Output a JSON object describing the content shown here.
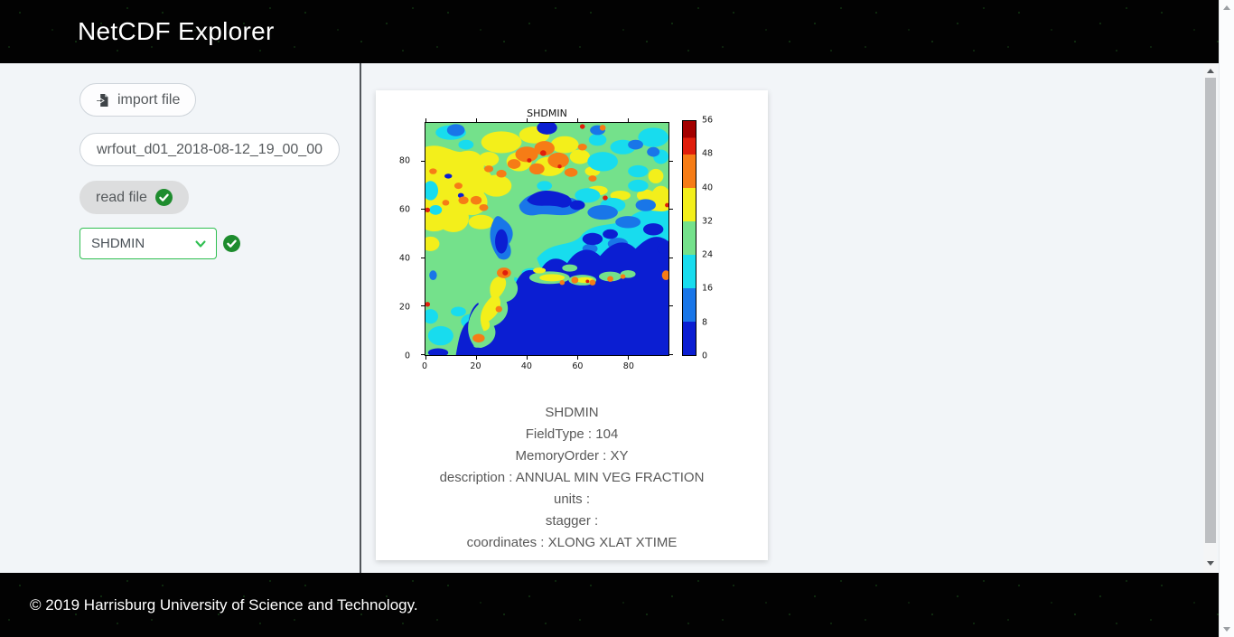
{
  "header": {
    "title": "NetCDF Explorer"
  },
  "sidebar": {
    "import_button": {
      "label": "import file",
      "icon": "file-import-icon"
    },
    "filename": "wrfout_d01_2018-08-12_19_00_00",
    "read_button": {
      "label": "read file",
      "status_icon": "check-circle-icon"
    },
    "variable_select": {
      "value": "SHDMIN",
      "chevron_icon": "chevron-down-icon",
      "status_icon": "check-circle-icon"
    }
  },
  "card": {
    "meta_lines": [
      "SHDMIN",
      "FieldType : 104",
      "MemoryOrder : XY",
      "description : ANNUAL MIN VEG FRACTION",
      "units :",
      "stagger :",
      "coordinates : XLONG XLAT XTIME"
    ]
  },
  "footer": {
    "copyright": "© 2019 Harrisburg University of Science and Technology."
  },
  "colors": {
    "header_bg": "#020202",
    "star_green": "#2f9b2f",
    "page_bg": "#f2f5f8",
    "card_bg": "#ffffff",
    "divider": "#53575c",
    "accent_green": "#2fbf51",
    "check_green": "#1e8c2e",
    "button_text": "#55595c"
  },
  "chart_data": {
    "type": "heatmap",
    "title": "SHDMIN",
    "xlabel": "",
    "ylabel": "",
    "x_range": [
      0,
      96
    ],
    "y_range": [
      0,
      96
    ],
    "x_ticks": [
      0,
      20,
      40,
      60,
      80
    ],
    "y_ticks": [
      0,
      20,
      40,
      60,
      80
    ],
    "grid": false,
    "legend_position": "right-colorbar",
    "colorbar": {
      "range": [
        0,
        56
      ],
      "ticks": [
        0,
        8,
        16,
        24,
        32,
        40,
        48,
        56
      ],
      "band_edges": [
        0,
        8,
        16,
        24,
        32,
        40,
        48,
        52,
        56
      ],
      "band_colors": [
        "#0b1ed2",
        "#1976e8",
        "#18dcee",
        "#74e18b",
        "#f3ef1b",
        "#f67c16",
        "#e01e0c",
        "#a30000"
      ]
    },
    "palette": {
      "dark_blue": "#0b1ed2",
      "blue": "#1976e8",
      "cyan": "#18dcee",
      "green": "#74e18b",
      "yellow": "#f3ef1b",
      "orange": "#f67c16",
      "red": "#e01e0c",
      "dark_red": "#a30000"
    },
    "regions_summary": "Filled contour field 0-56: large low-value (0-8) dark-blue area over bottom and lower-right; cyan/blue belt (8-24) across middle-right; green background (24-32); yellow band (32-40) on left and upper-middle; orange patches (40-48) clustered upper-middle near y=72-86 and on a peninsula near x=30,y=33; sparse red maxima (48-56)."
  }
}
